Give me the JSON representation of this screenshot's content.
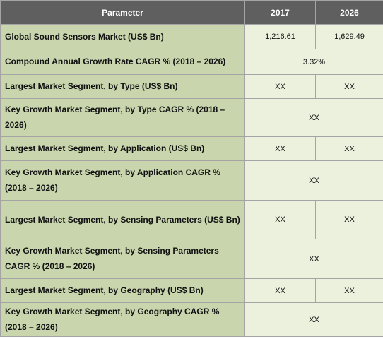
{
  "header": {
    "parameter": "Parameter",
    "year1": "2017",
    "year2": "2026"
  },
  "rows": [
    {
      "label": "Global Sound Sensors Market (US$ Bn)",
      "v2017": "1,216.61",
      "v2026": "1,629.49"
    },
    {
      "label": "Compound Annual Growth Rate CAGR % (2018 – 2026)",
      "merged": "3.32%"
    },
    {
      "label": "Largest Market Segment, by Type (US$ Bn)",
      "v2017": "XX",
      "v2026": "XX"
    },
    {
      "label": "Key Growth Market Segment, by Type CAGR % (2018 – 2026)",
      "merged": "XX"
    },
    {
      "label": "Largest Market Segment, by Application (US$ Bn)",
      "v2017": "XX",
      "v2026": "XX"
    },
    {
      "label": "Key Growth Market Segment, by Application CAGR % (2018 – 2026)",
      "merged": "XX"
    },
    {
      "label": "Largest Market Segment, by Sensing Parameters (US$ Bn)",
      "v2017": "XX",
      "v2026": "XX"
    },
    {
      "label": "Key Growth Market Segment, by Sensing Parameters CAGR % (2018 – 2026)",
      "merged": "XX"
    },
    {
      "label": "Largest Market Segment, by Geography (US$ Bn)",
      "v2017": "XX",
      "v2026": "XX"
    },
    {
      "label": "Key Growth Market Segment, by Geography CAGR % (2018 – 2026)",
      "merged": "XX"
    }
  ],
  "colors": {
    "header_bg": "#5f5f5f",
    "label_bg": "#c8d5ad",
    "value_bg": "#ebf1dd",
    "border": "#a4a4a4"
  }
}
